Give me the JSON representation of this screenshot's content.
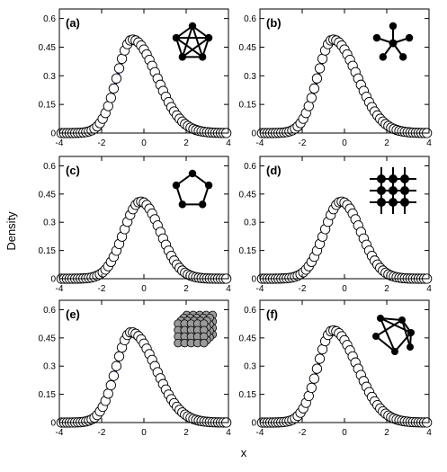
{
  "chart_data": {
    "type": "line",
    "ylabel": "Density",
    "xlabel": "x",
    "panels": [
      {
        "label": "(a)",
        "icon": "complete-graph-icon",
        "mode": -0.5,
        "peak": 0.49,
        "width": 0.85,
        "skew": 1.6
      },
      {
        "label": "(b)",
        "icon": "star-graph-icon",
        "mode": -0.5,
        "peak": 0.49,
        "width": 0.85,
        "skew": 1.6
      },
      {
        "label": "(c)",
        "icon": "ring-graph-icon",
        "mode": -0.1,
        "peak": 0.41,
        "width": 0.95,
        "skew": 1.15
      },
      {
        "label": "(d)",
        "icon": "lattice-grid-icon",
        "mode": -0.1,
        "peak": 0.41,
        "width": 0.95,
        "skew": 1.15
      },
      {
        "label": "(e)",
        "icon": "cubic-lattice-icon",
        "mode": -0.55,
        "peak": 0.48,
        "width": 0.85,
        "skew": 1.6
      },
      {
        "label": "(f)",
        "icon": "random-graph-icon",
        "mode": -0.5,
        "peak": 0.49,
        "width": 0.85,
        "skew": 1.6
      }
    ],
    "xlim": [
      -4,
      4
    ],
    "ylim": [
      0,
      0.65
    ],
    "xticks": [
      -4,
      -2,
      0,
      2,
      4
    ],
    "yticks": [
      0,
      0.15,
      0.3,
      0.45,
      0.6
    ],
    "ytick_labels": [
      "0",
      "0.15",
      "0.3",
      "0.45",
      "0.6"
    ],
    "xtick_labels": [
      "-4",
      "-2",
      "0",
      "2",
      "4"
    ],
    "series_colors": {
      "fit": "#1a1acc",
      "reference": "#000000",
      "markers": "#000000"
    },
    "grid": false
  }
}
